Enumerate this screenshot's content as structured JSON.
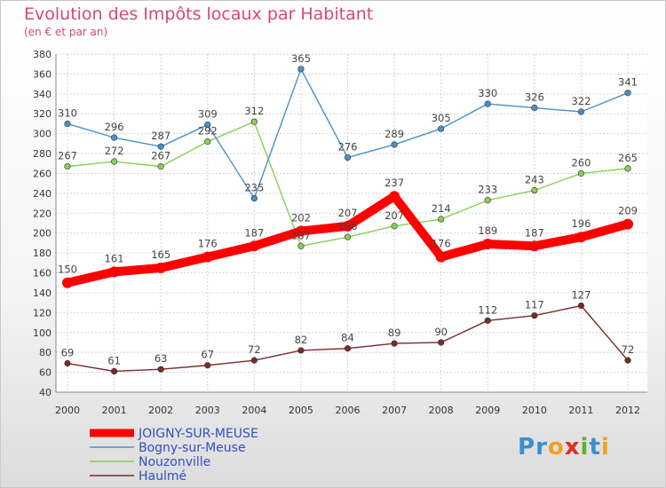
{
  "title": "Evolution des Impôts locaux par Habitant",
  "subtitle": "(en € et par an)",
  "logo": "Proxiti",
  "chart_data": {
    "type": "line",
    "x": [
      "2000",
      "2001",
      "2002",
      "2003",
      "2004",
      "2005",
      "2006",
      "2007",
      "2008",
      "2009",
      "2010",
      "2011",
      "2012"
    ],
    "ylim": [
      40,
      380
    ],
    "yticks": [
      40,
      60,
      80,
      100,
      120,
      140,
      160,
      180,
      200,
      220,
      240,
      260,
      280,
      300,
      320,
      340,
      360,
      380
    ],
    "grid": true,
    "legend_position": "bottom-left",
    "series": [
      {
        "name": "JOIGNY-SUR-MEUSE",
        "color": "#ff0000",
        "values": [
          150,
          161,
          165,
          176,
          187,
          202,
          207,
          237,
          176,
          189,
          187,
          196,
          209
        ]
      },
      {
        "name": "Bogny-sur-Meuse",
        "color": "#4a90c8",
        "values": [
          310,
          296,
          287,
          309,
          235,
          365,
          276,
          289,
          305,
          330,
          326,
          322,
          341
        ]
      },
      {
        "name": "Nouzonville",
        "color": "#88d055",
        "values": [
          267,
          272,
          267,
          292,
          312,
          187,
          196,
          207,
          214,
          233,
          243,
          260,
          265
        ]
      },
      {
        "name": "Haulmé",
        "color": "#7a2a2a",
        "values": [
          69,
          61,
          63,
          67,
          72,
          82,
          84,
          89,
          90,
          112,
          117,
          127,
          72
        ]
      }
    ]
  }
}
